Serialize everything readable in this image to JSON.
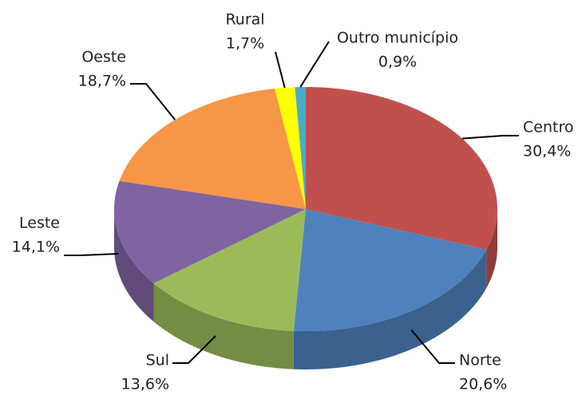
{
  "chart_data": {
    "type": "pie",
    "categories": [
      "Centro",
      "Norte",
      "Sul",
      "Leste",
      "Oeste",
      "Rural",
      "Outro município"
    ],
    "values": [
      30.4,
      20.6,
      13.6,
      14.1,
      18.7,
      1.7,
      0.9
    ],
    "value_labels": [
      "30,4%",
      "20,6%",
      "13,6%",
      "14,1%",
      "18,7%",
      "1,7%",
      "0,9%"
    ],
    "colors": [
      "#c0504d",
      "#4f81bd",
      "#9bbb59",
      "#8064a2",
      "#f79646",
      "#ffff00",
      "#4bacc6"
    ]
  }
}
